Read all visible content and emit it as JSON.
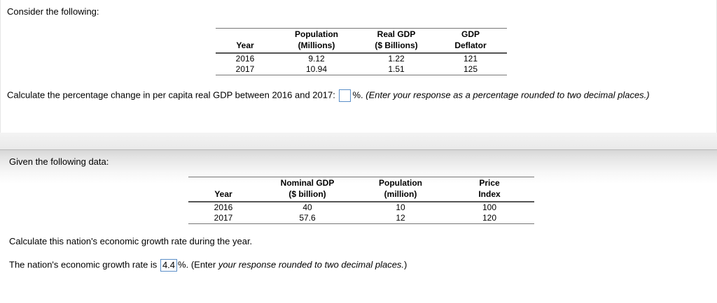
{
  "problem1": {
    "intro": "Consider the following:",
    "table": {
      "headers": [
        [
          "Year"
        ],
        [
          "Population",
          "(Millions)"
        ],
        [
          "Real GDP",
          "($ Billions)"
        ],
        [
          "GDP",
          "Deflator"
        ]
      ],
      "rows": [
        [
          "2016",
          "9.12",
          "1.22",
          "121"
        ],
        [
          "2017",
          "10.94",
          "1.51",
          "125"
        ]
      ]
    },
    "question": "Calculate the percentage change in per capita real GDP between 2016 and 2017:",
    "answer_value": "",
    "unit": "%.",
    "instruction": "(Enter your response as a percentage rounded to two decimal places.)"
  },
  "problem2": {
    "intro": "Given the following data:",
    "table": {
      "headers": [
        [
          "Year"
        ],
        [
          "Nominal GDP",
          "($ billion)"
        ],
        [
          "Population",
          "(million)"
        ],
        [
          "Price",
          "Index"
        ]
      ],
      "rows": [
        [
          "2016",
          "40",
          "10",
          "100"
        ],
        [
          "2017",
          "57.6",
          "12",
          "120"
        ]
      ]
    },
    "question": "Calculate this nation's economic growth rate during the year.",
    "answer_prefix": "The nation's economic growth rate is",
    "answer_value": "4.4",
    "unit": "%.",
    "instruction_prefix": "(Enter ",
    "instruction_italic": "your response rounded to two decimal places.",
    "instruction_suffix": ")"
  },
  "colors": {
    "input_border": "#5b8fc8",
    "rule": "#555555"
  }
}
